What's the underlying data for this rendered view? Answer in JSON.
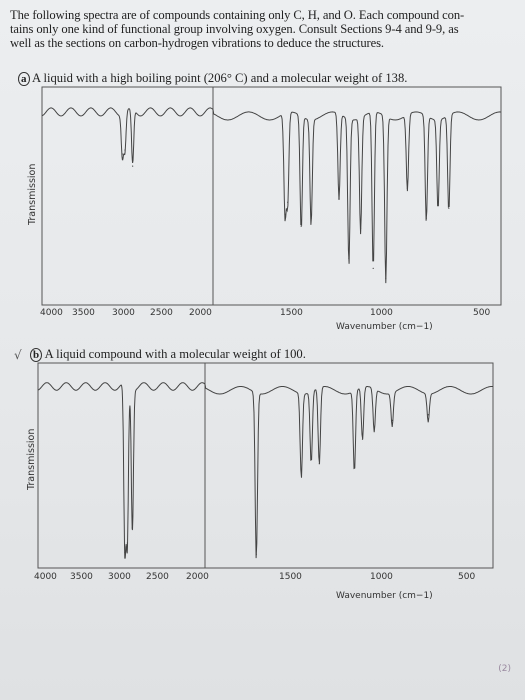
{
  "document": {
    "intro_lines": [
      "The following spectra are of compounds containing only C, H, and O. Each compound con-",
      "tains only one kind of functional group involving oxygen. Consult Sections 9-4 and 9-9, as",
      "well as the sections on carbon-hydrogen vibrations to deduce the structures."
    ],
    "part_a": {
      "label": "a",
      "text": "A liquid with a high boiling point (206° C) and a molecular weight of 138."
    },
    "part_b": {
      "label": "b",
      "text": "A liquid compound with a molecular weight of 100.",
      "checkmark": "√"
    },
    "page_number": "(2)"
  },
  "spectrum_a": {
    "ylabel": "Transmission",
    "xlabel": "Wavenumber (cm−1)",
    "ticks": [
      "4000",
      "3500",
      "3000",
      "2500",
      "2000",
      "1500",
      "1000",
      "500"
    ]
  },
  "spectrum_b": {
    "ylabel": "Transmission",
    "xlabel": "Wavenumber (cm−1)",
    "ticks": [
      "4000",
      "3500",
      "3000",
      "2500",
      "2000",
      "1500",
      "1000",
      "500"
    ]
  },
  "chart_data": [
    {
      "type": "line",
      "ylabel": "Transmission",
      "xlabel": "Wavenumber (cm−1)",
      "x_ticks": [
        4000,
        3500,
        3000,
        2500,
        2000,
        1500,
        1000,
        500
      ],
      "peaks": [
        {
          "x": 3060,
          "y": 0.72
        },
        {
          "x": 3030,
          "y": 0.74
        },
        {
          "x": 2940,
          "y": 0.66
        },
        {
          "x": 1600,
          "y": 0.42
        },
        {
          "x": 1585,
          "y": 0.48
        },
        {
          "x": 1510,
          "y": 0.36
        },
        {
          "x": 1455,
          "y": 0.4
        },
        {
          "x": 1300,
          "y": 0.5
        },
        {
          "x": 1245,
          "y": 0.2
        },
        {
          "x": 1180,
          "y": 0.35
        },
        {
          "x": 1110,
          "y": 0.15
        },
        {
          "x": 1040,
          "y": 0.1
        },
        {
          "x": 920,
          "y": 0.55
        },
        {
          "x": 815,
          "y": 0.4
        },
        {
          "x": 750,
          "y": 0.48
        },
        {
          "x": 690,
          "y": 0.45
        }
      ]
    },
    {
      "type": "line",
      "ylabel": "Transmission",
      "xlabel": "Wavenumber (cm−1)",
      "x_ticks": [
        4000,
        3500,
        3000,
        2500,
        2000,
        1500,
        1000,
        500
      ],
      "peaks": [
        {
          "x": 2960,
          "y": 0.05
        },
        {
          "x": 2930,
          "y": 0.1
        },
        {
          "x": 2870,
          "y": 0.18
        },
        {
          "x": 1715,
          "y": 0.04
        },
        {
          "x": 1465,
          "y": 0.48
        },
        {
          "x": 1410,
          "y": 0.55
        },
        {
          "x": 1365,
          "y": 0.52
        },
        {
          "x": 1170,
          "y": 0.5
        },
        {
          "x": 1125,
          "y": 0.65
        },
        {
          "x": 1060,
          "y": 0.7
        },
        {
          "x": 960,
          "y": 0.75
        },
        {
          "x": 760,
          "y": 0.78
        }
      ]
    }
  ]
}
